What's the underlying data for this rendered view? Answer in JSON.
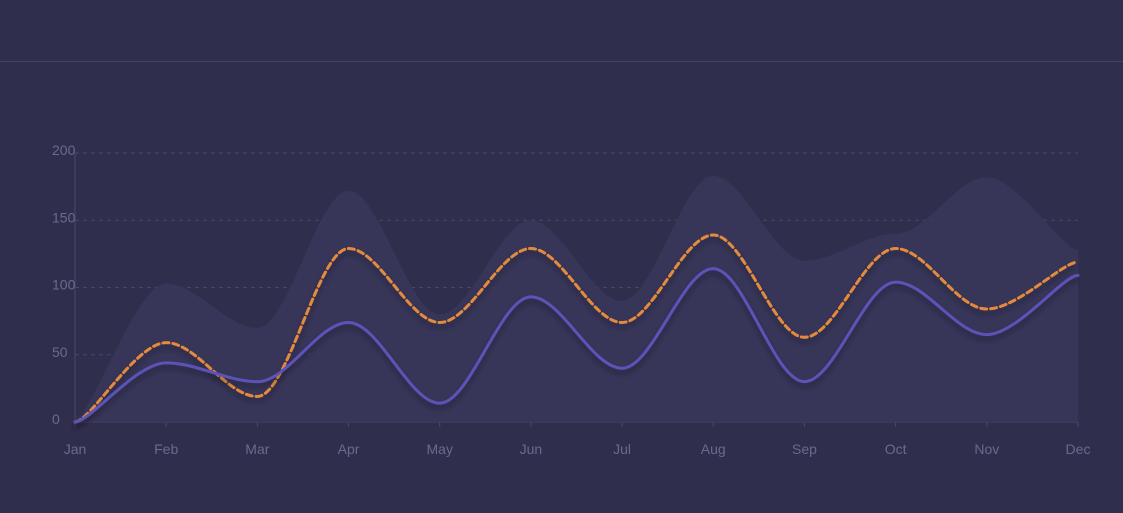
{
  "header": {
    "title": ""
  },
  "colors": {
    "background": "#302e4d",
    "grid": "#4a4868",
    "axis_text": "#6c6a8c",
    "series_solid": "#5b53b8",
    "series_dashed": "#e48a3c",
    "area_band": "#38365a"
  },
  "chart_data": {
    "type": "line",
    "title": "",
    "xlabel": "",
    "ylabel": "",
    "categories": [
      "Jan",
      "Feb",
      "Mar",
      "Apr",
      "May",
      "Jun",
      "Jul",
      "Aug",
      "Sep",
      "Oct",
      "Nov",
      "Dec"
    ],
    "yticks": [
      0,
      50,
      100,
      150,
      200
    ],
    "ylim": [
      0,
      200
    ],
    "grid": true,
    "legend": "none",
    "series": [
      {
        "style": "area",
        "color": "#38365a",
        "values": [
          2,
          103,
          70,
          172,
          80,
          150,
          90,
          183,
          120,
          140,
          182,
          128
        ]
      },
      {
        "style": "dashed",
        "color": "#e48a3c",
        "values": [
          0,
          59,
          19,
          129,
          74,
          129,
          74,
          139,
          63,
          129,
          84,
          119
        ]
      },
      {
        "style": "solid",
        "color": "#5b53b8",
        "values": [
          0,
          44,
          30,
          74,
          14,
          93,
          40,
          114,
          30,
          104,
          65,
          109
        ]
      }
    ]
  }
}
